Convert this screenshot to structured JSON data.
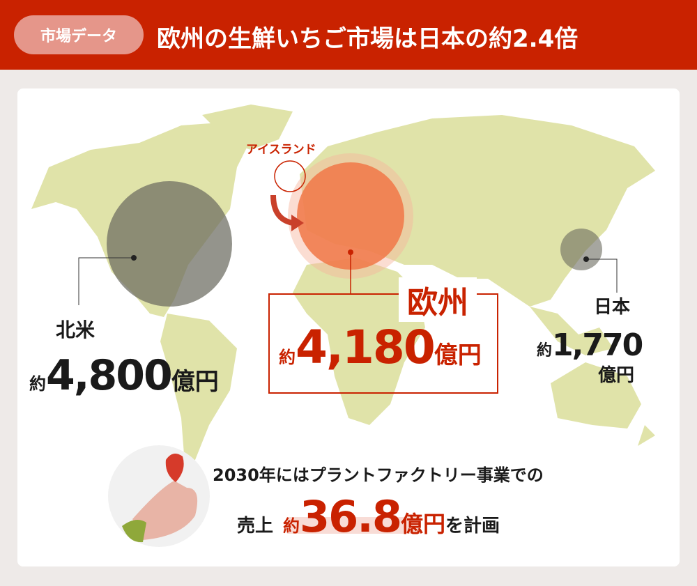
{
  "header": {
    "tag": "市場データ",
    "title": "欧州の生鮮いちご市場は日本の約2.4倍"
  },
  "map": {
    "iceland_label": "アイスランド",
    "regions": [
      {
        "name": "北米",
        "prefix": "約",
        "value": "4,800",
        "unit": "億円"
      },
      {
        "name": "欧州",
        "prefix": "約",
        "value": "4,180",
        "unit": "億円"
      },
      {
        "name": "日本",
        "prefix": "約",
        "value": "1,770",
        "unit": "億円"
      }
    ]
  },
  "footer": {
    "line1": "2030年にはプラントファクトリー事業での",
    "prefix": "売上",
    "approx": "約",
    "value": "36.8",
    "unit": "億円",
    "suffix": "を計画"
  },
  "colors": {
    "header": "#c92200",
    "land": "#e0e3a9",
    "europe": "#f07a4a",
    "accent": "#c92200"
  }
}
